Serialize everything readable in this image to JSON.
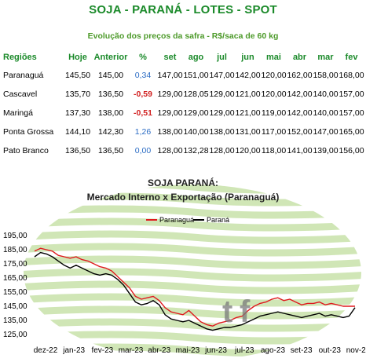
{
  "header": {
    "title": "SOJA - PARANÁ - LOTES - SPOT",
    "subtitle": "Evolução dos preços da safra - R$/saca de 60 kg"
  },
  "table": {
    "columns": [
      "Regiões",
      "Hoje",
      "Anterior",
      "%",
      "set",
      "ago",
      "jul",
      "jun",
      "mai",
      "abr",
      "mar",
      "fev"
    ],
    "rows": [
      {
        "region": "Paranaguá",
        "hoje": "145,50",
        "anterior": "145,00",
        "pct": "0,34",
        "pct_sign": "pos",
        "months": [
          "147,00",
          "151,00",
          "147,00",
          "142,00",
          "120,00",
          "162,00",
          "158,00",
          "168,00"
        ]
      },
      {
        "region": "Cascavel",
        "hoje": "135,70",
        "anterior": "136,50",
        "pct": "-0,59",
        "pct_sign": "neg",
        "months": [
          "129,00",
          "128,05",
          "129,00",
          "121,00",
          "120,00",
          "142,00",
          "140,00",
          "157,00"
        ]
      },
      {
        "region": "Maringá",
        "hoje": "137,30",
        "anterior": "138,00",
        "pct": "-0,51",
        "pct_sign": "neg",
        "months": [
          "129,00",
          "129,00",
          "129,00",
          "121,00",
          "119,00",
          "142,00",
          "140,00",
          "157,00"
        ]
      },
      {
        "region": "Ponta Grossa",
        "hoje": "144,10",
        "anterior": "142,30",
        "pct": "1,26",
        "pct_sign": "pos",
        "months": [
          "138,00",
          "140,00",
          "138,00",
          "131,00",
          "117,00",
          "152,00",
          "147,00",
          "165,00"
        ]
      },
      {
        "region": "Pato Branco",
        "hoje": "136,50",
        "anterior": "136,50",
        "pct": "0,00",
        "pct_sign": "zero",
        "months": [
          "128,00",
          "132,28",
          "128,00",
          "120,00",
          "118,00",
          "141,00",
          "139,00",
          "156,00"
        ]
      }
    ]
  },
  "colors": {
    "green": "#1b8a2a",
    "positive": "#2b6cc4",
    "negative": "#d11f1f",
    "series_paranagua": "#e0191e",
    "series_parana": "#000000",
    "background_stripes": "#a9d27a"
  },
  "chart_data": {
    "type": "line",
    "title": "SOJA PARANÁ:",
    "subtitle": "Mercado Interno x Exportação (Paranaguá)",
    "ylim": [
      125,
      195
    ],
    "yticks": [
      "195,00",
      "185,00",
      "175,00",
      "165,00",
      "155,00",
      "145,00",
      "135,00",
      "125,00"
    ],
    "ytick_values": [
      195,
      185,
      175,
      165,
      155,
      145,
      135,
      125
    ],
    "xticks": [
      "dez-22",
      "jan-23",
      "fev-23",
      "mar-23",
      "abr-23",
      "mai-23",
      "jun-23",
      "jul-23",
      "ago-23",
      "set-23",
      "out-23",
      "nov-23"
    ],
    "legend": "top",
    "series": [
      {
        "name": "Paranaguá",
        "color": "#e0191e",
        "values": [
          184,
          186,
          185,
          184,
          181,
          180,
          179,
          180,
          178,
          177,
          175,
          173,
          172,
          170,
          166,
          162,
          158,
          152,
          150,
          151,
          152,
          149,
          144,
          141,
          140,
          139,
          142,
          138,
          134,
          132,
          131,
          133,
          134,
          135,
          137,
          138,
          142,
          145,
          147,
          148,
          150,
          151,
          149,
          150,
          148,
          146,
          147,
          147,
          148,
          146,
          147,
          146,
          145,
          145,
          145
        ]
      },
      {
        "name": "Paraná",
        "color": "#000000",
        "values": [
          180,
          183,
          182,
          180,
          177,
          174,
          172,
          174,
          172,
          170,
          168,
          167,
          168,
          167,
          164,
          160,
          154,
          148,
          146,
          147,
          149,
          146,
          139,
          136,
          135,
          134,
          135,
          133,
          131,
          129,
          128,
          129,
          130,
          130,
          131,
          132,
          134,
          136,
          138,
          139,
          140,
          141,
          140,
          139,
          138,
          137,
          138,
          139,
          140,
          138,
          139,
          138,
          137,
          138,
          144
        ]
      }
    ]
  }
}
